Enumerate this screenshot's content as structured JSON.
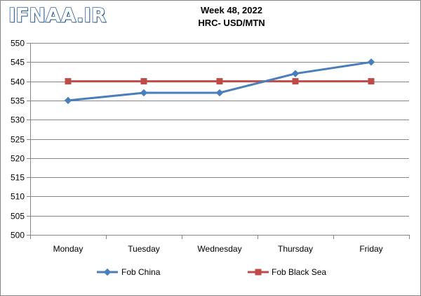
{
  "watermark": {
    "logo_text": "IFNAA.IR",
    "color": "#2c67a6"
  },
  "chart_data": {
    "type": "line",
    "title": "Week 48, 2022",
    "subtitle": "HRC- USD/MTN",
    "categories": [
      "Monday",
      "Tuesday",
      "Wednesday",
      "Thursday",
      "Friday"
    ],
    "series": [
      {
        "name": "Fob China",
        "values": [
          535,
          537,
          537,
          542,
          545
        ],
        "color": "#4a7ebb",
        "marker": "diamond"
      },
      {
        "name": "Fob Black Sea",
        "values": [
          540,
          540,
          540,
          540,
          540
        ],
        "color": "#be4b48",
        "marker": "square"
      }
    ],
    "ylim": [
      500,
      550
    ],
    "ytick_step": 5,
    "yticks": [
      "500",
      "505",
      "510",
      "515",
      "520",
      "525",
      "530",
      "535",
      "540",
      "545",
      "550"
    ],
    "xlabel": "",
    "ylabel": "",
    "grid": true,
    "legend_position": "bottom"
  }
}
